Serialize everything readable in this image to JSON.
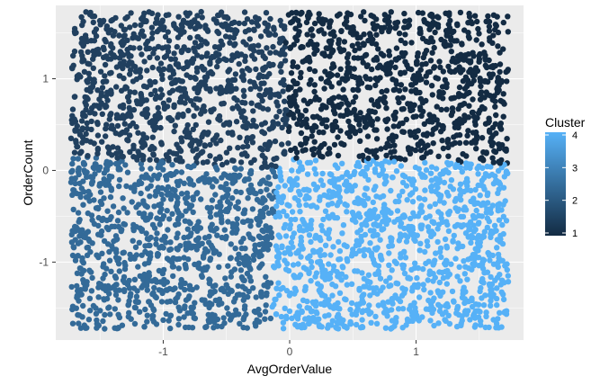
{
  "chart_data": {
    "type": "scatter",
    "xlabel": "AvgOrderValue",
    "ylabel": "OrderCount",
    "xlim": [
      -1.85,
      1.85
    ],
    "ylim": [
      -1.85,
      1.8
    ],
    "x_ticks": [
      -1,
      0,
      1
    ],
    "y_ticks": [
      -1,
      0,
      1
    ],
    "x_tick_labels": [
      "-1",
      "0",
      "1"
    ],
    "y_tick_labels": [
      "-1",
      "0",
      "1"
    ],
    "grid": true,
    "panel_background": "#ebebeb",
    "grid_color": "#ffffff",
    "legend": {
      "title": "Cluster",
      "placement": "right",
      "range": [
        1,
        4
      ],
      "labels": [
        "1",
        "2",
        "3",
        "4"
      ],
      "low_color": "#132b43",
      "high_color": "#56b1f7"
    },
    "color_variable": "Cluster",
    "x_range_of_points": [
      -1.73,
      1.73
    ],
    "y_range_of_points": [
      -1.73,
      1.73
    ],
    "clusters": [
      {
        "value": 1,
        "color": "#132b43",
        "center": [
          0.9,
          1.05
        ],
        "description_region": "upper right"
      },
      {
        "value": 2,
        "color": "#21405f",
        "center": [
          -0.95,
          1.0
        ],
        "description_region": "upper left"
      },
      {
        "value": 3,
        "color": "#336a98",
        "center": [
          -1.1,
          -0.8
        ],
        "description_region": "lower left"
      },
      {
        "value": 4,
        "color": "#56b1f7",
        "center": [
          0.85,
          -0.85
        ],
        "description_region": "lower right"
      }
    ],
    "approx_point_count": 4000
  }
}
